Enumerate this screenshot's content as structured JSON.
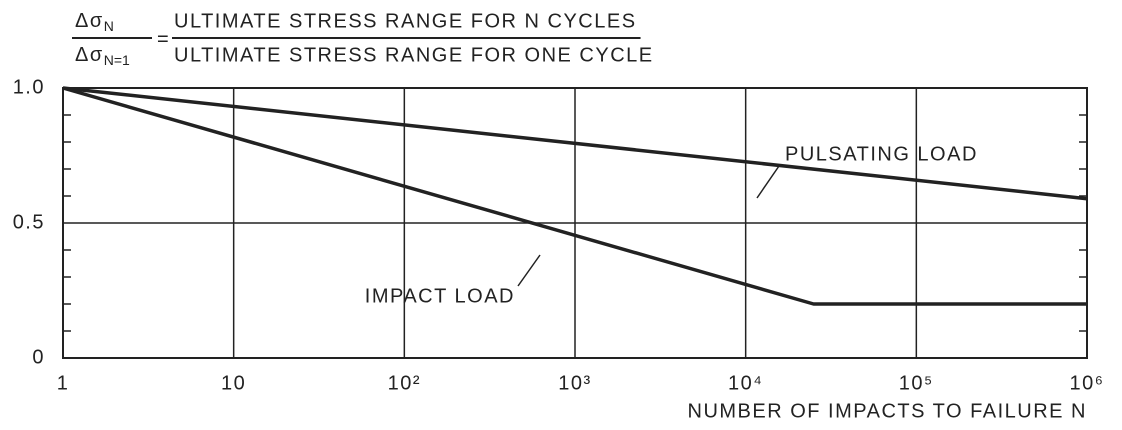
{
  "chart_data": {
    "type": "line",
    "title_formula": {
      "lhs_top": {
        "symbol": "Δσ",
        "sub": "N"
      },
      "lhs_bottom": {
        "symbol": "Δσ",
        "sub": "N=1"
      },
      "equals": "=",
      "rhs_top": "ULTIMATE STRESS RANGE FOR N CYCLES",
      "rhs_bottom": "ULTIMATE STRESS RANGE FOR ONE CYCLE"
    },
    "x_label": "NUMBER OF IMPACTS TO FAILURE N",
    "log_x": true,
    "xlim": [
      1,
      1000000
    ],
    "xticks": [
      1,
      10,
      {
        "value": 100,
        "label": "10²"
      },
      {
        "value": 1000,
        "label": "10³"
      },
      {
        "value": 10000,
        "label": "10⁴"
      },
      {
        "value": 100000,
        "label": "10⁵"
      },
      {
        "value": 1000000,
        "label": "10⁶"
      }
    ],
    "ylim": [
      0,
      1
    ],
    "yticks": [
      0,
      0.5,
      {
        "value": 1,
        "label": "1.0"
      }
    ],
    "y_minor_ticks": [
      0.1,
      0.2,
      0.3,
      0.4,
      0.6,
      0.7,
      0.8,
      0.9
    ],
    "grid": true,
    "series": [
      {
        "name": "PULSATING LOAD",
        "color": "#222222",
        "x": [
          1,
          1000000
        ],
        "values": [
          1.0,
          0.59
        ]
      },
      {
        "name": "IMPACT LOAD",
        "color": "#222222",
        "x": [
          1,
          25000,
          1000000
        ],
        "values": [
          1.0,
          0.2,
          0.2
        ]
      }
    ]
  }
}
